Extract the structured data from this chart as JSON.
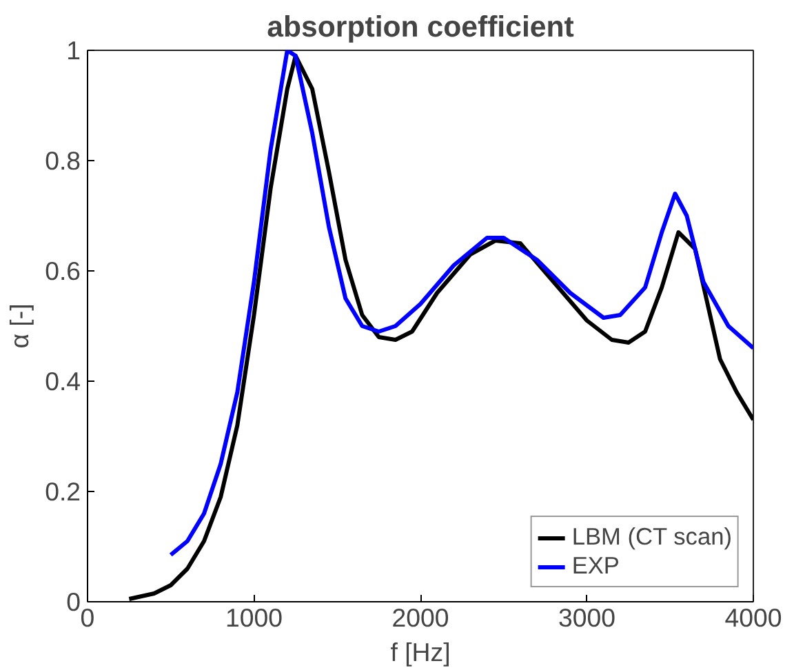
{
  "chart_data": {
    "type": "line",
    "title": "absorption coefficient",
    "xlabel": "f [Hz]",
    "ylabel": "α [-]",
    "xlim": [
      0,
      4000
    ],
    "xticks": [
      0,
      1000,
      2000,
      3000,
      4000
    ],
    "ylim": [
      0,
      1
    ],
    "yticks": [
      0,
      0.2,
      0.4,
      0.6,
      0.8,
      1
    ],
    "grid": false,
    "legend": "bottom right",
    "series": [
      {
        "name": "LBM (CT scan)",
        "color": "#000000",
        "x": [
          250,
          400,
          500,
          600,
          700,
          800,
          900,
          1000,
          1100,
          1200,
          1250,
          1350,
          1450,
          1550,
          1650,
          1750,
          1850,
          1950,
          2100,
          2300,
          2450,
          2600,
          2800,
          3000,
          3150,
          3250,
          3350,
          3450,
          3550,
          3650,
          3800,
          3900,
          4000
        ],
        "values": [
          0.005,
          0.015,
          0.03,
          0.06,
          0.11,
          0.19,
          0.32,
          0.52,
          0.75,
          0.93,
          0.99,
          0.93,
          0.78,
          0.62,
          0.52,
          0.48,
          0.475,
          0.49,
          0.56,
          0.63,
          0.655,
          0.65,
          0.58,
          0.51,
          0.475,
          0.47,
          0.49,
          0.57,
          0.67,
          0.64,
          0.44,
          0.38,
          0.33
        ]
      },
      {
        "name": "EXP",
        "color": "#0000ff",
        "x": [
          500,
          600,
          700,
          800,
          900,
          1000,
          1100,
          1200,
          1250,
          1350,
          1450,
          1550,
          1650,
          1750,
          1850,
          2000,
          2200,
          2400,
          2500,
          2700,
          2900,
          3100,
          3200,
          3350,
          3450,
          3530,
          3600,
          3700,
          3850,
          4000
        ],
        "values": [
          0.085,
          0.11,
          0.16,
          0.25,
          0.38,
          0.58,
          0.82,
          1.0,
          0.99,
          0.85,
          0.68,
          0.55,
          0.5,
          0.49,
          0.5,
          0.54,
          0.61,
          0.66,
          0.66,
          0.62,
          0.56,
          0.515,
          0.52,
          0.57,
          0.67,
          0.74,
          0.7,
          0.58,
          0.5,
          0.46
        ]
      }
    ]
  }
}
